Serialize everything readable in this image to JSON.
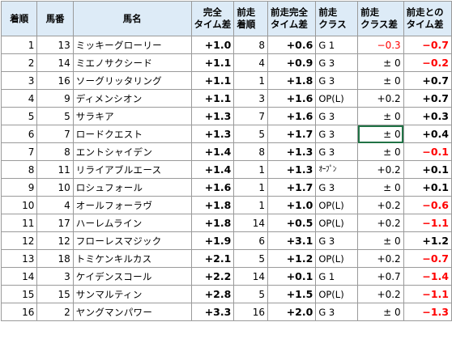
{
  "headers": {
    "rank": "着順",
    "umaban": "馬番",
    "horse": "馬名",
    "time_diff_1": "完全",
    "time_diff_2": "タイム差",
    "prev_rank_1": "前走",
    "prev_rank_2": "着順",
    "prev_time_1": "前走完全",
    "prev_time_2": "タイム差",
    "prev_class_1": "前走",
    "prev_class_2": "クラス",
    "class_diff_1": "前走",
    "class_diff_2": "クラス差",
    "vs_prev_1": "前走との",
    "vs_prev_2": "タイム差"
  },
  "rows": [
    {
      "rank": "1",
      "umaban": "13",
      "horse": "ミッキーグローリー",
      "time": "+1.0",
      "prev_rank": "8",
      "prev_time": "+0.6",
      "prev_class": "G 1",
      "class_diff": "−0.3",
      "vs_prev": "−0.7"
    },
    {
      "rank": "2",
      "umaban": "14",
      "horse": "ミエノサクシード",
      "time": "+1.1",
      "prev_rank": "4",
      "prev_time": "+0.9",
      "prev_class": "G 3",
      "class_diff": "± 0",
      "vs_prev": "−0.2"
    },
    {
      "rank": "3",
      "umaban": "16",
      "horse": "ソーグリッタリング",
      "time": "+1.1",
      "prev_rank": "1",
      "prev_time": "+1.8",
      "prev_class": "G 3",
      "class_diff": "± 0",
      "vs_prev": "+0.7"
    },
    {
      "rank": "4",
      "umaban": "9",
      "horse": "ディメンシオン",
      "time": "+1.1",
      "prev_rank": "3",
      "prev_time": "+1.6",
      "prev_class": "OP(L)",
      "class_diff": "+0.2",
      "vs_prev": "+0.7"
    },
    {
      "rank": "5",
      "umaban": "5",
      "horse": "サラキア",
      "time": "+1.3",
      "prev_rank": "7",
      "prev_time": "+1.6",
      "prev_class": "G 3",
      "class_diff": "± 0",
      "vs_prev": "+0.3"
    },
    {
      "rank": "6",
      "umaban": "7",
      "horse": "ロードクエスト",
      "time": "+1.3",
      "prev_rank": "5",
      "prev_time": "+1.7",
      "prev_class": "G 3",
      "class_diff": "± 0",
      "vs_prev": "+0.4"
    },
    {
      "rank": "7",
      "umaban": "8",
      "horse": "エントシャイデン",
      "time": "+1.4",
      "prev_rank": "8",
      "prev_time": "+1.3",
      "prev_class": "G 3",
      "class_diff": "± 0",
      "vs_prev": "−0.1"
    },
    {
      "rank": "8",
      "umaban": "11",
      "horse": "リライアブルエース",
      "time": "+1.4",
      "prev_rank": "1",
      "prev_time": "+1.3",
      "prev_class": "ｵｰﾌﾟﾝ",
      "class_diff": "+0.2",
      "vs_prev": "+0.1"
    },
    {
      "rank": "9",
      "umaban": "10",
      "horse": "ロシュフォール",
      "time": "+1.6",
      "prev_rank": "1",
      "prev_time": "+1.7",
      "prev_class": "G 3",
      "class_diff": "± 0",
      "vs_prev": "+0.1"
    },
    {
      "rank": "10",
      "umaban": "4",
      "horse": "オールフォーラヴ",
      "time": "+1.8",
      "prev_rank": "1",
      "prev_time": "+1.0",
      "prev_class": "OP(L)",
      "class_diff": "+0.2",
      "vs_prev": "−0.6"
    },
    {
      "rank": "11",
      "umaban": "17",
      "horse": "ハーレムライン",
      "time": "+1.8",
      "prev_rank": "14",
      "prev_time": "+0.5",
      "prev_class": "OP(L)",
      "class_diff": "+0.2",
      "vs_prev": "−1.1"
    },
    {
      "rank": "12",
      "umaban": "12",
      "horse": "フローレスマジック",
      "time": "+1.9",
      "prev_rank": "6",
      "prev_time": "+3.1",
      "prev_class": "G 3",
      "class_diff": "± 0",
      "vs_prev": "+1.2"
    },
    {
      "rank": "13",
      "umaban": "18",
      "horse": "トミケンキルカス",
      "time": "+2.1",
      "prev_rank": "5",
      "prev_time": "+1.2",
      "prev_class": "OP(L)",
      "class_diff": "+0.2",
      "vs_prev": "−0.7"
    },
    {
      "rank": "14",
      "umaban": "3",
      "horse": "ケイデンスコール",
      "time": "+2.2",
      "prev_rank": "14",
      "prev_time": "+0.1",
      "prev_class": "G 1",
      "class_diff": "+0.7",
      "vs_prev": "−1.4"
    },
    {
      "rank": "15",
      "umaban": "15",
      "horse": "サンマルティン",
      "time": "+2.8",
      "prev_rank": "5",
      "prev_time": "+1.5",
      "prev_class": "OP(L)",
      "class_diff": "+0.2",
      "vs_prev": "−1.1"
    },
    {
      "rank": "16",
      "umaban": "2",
      "horse": "ヤングマンパワー",
      "time": "+3.3",
      "prev_rank": "16",
      "prev_time": "+2.0",
      "prev_class": "G 3",
      "class_diff": "± 0",
      "vs_prev": "−1.3"
    }
  ],
  "colors": {
    "header_bg": "#ddebf7",
    "negative": "#ff0000",
    "selection": "#217346"
  }
}
